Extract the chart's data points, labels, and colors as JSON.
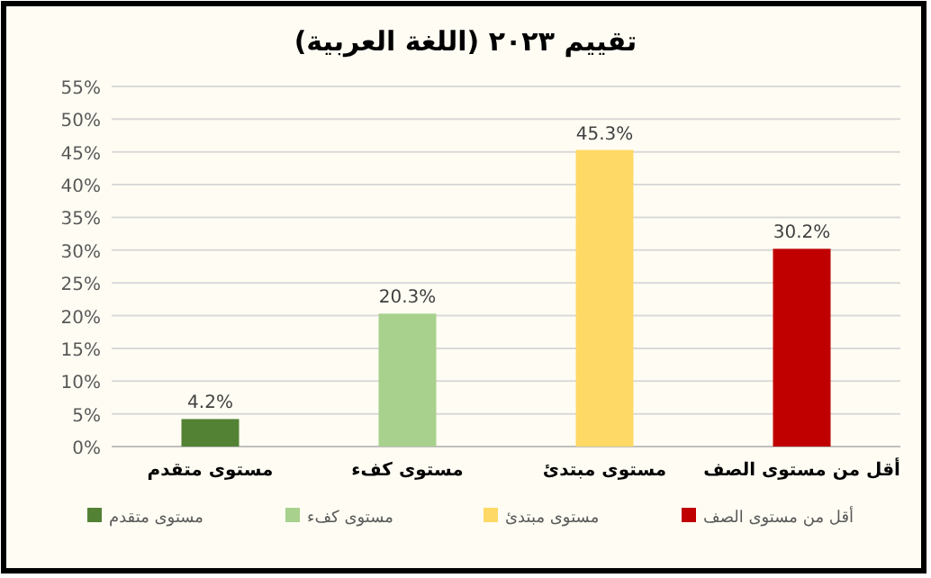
{
  "chart_data": {
    "type": "bar",
    "title": "تقييم ٢٠٢٣ (اللغة العربية)",
    "categories": [
      "مستوى متقدم",
      "مستوى كفء",
      "مستوى مبتدئ",
      "أقل من مستوى الصف"
    ],
    "series": [
      {
        "name": "مستوى متقدم",
        "color": "#548235",
        "values": [
          4.2,
          null,
          null,
          null
        ],
        "value_labels": [
          "4.2%",
          null,
          null,
          null
        ]
      },
      {
        "name": "مستوى كفء",
        "color": "#a9d18e",
        "values": [
          null,
          20.3,
          null,
          null
        ],
        "value_labels": [
          null,
          "20.3%",
          null,
          null
        ]
      },
      {
        "name": "مستوى مبتدئ",
        "color": "#ffd966",
        "values": [
          null,
          null,
          45.3,
          null
        ],
        "value_labels": [
          null,
          null,
          "45.3%",
          null
        ]
      },
      {
        "name": "أقل من مستوى الصف",
        "color": "#c00000",
        "values": [
          null,
          null,
          null,
          30.2
        ],
        "value_labels": [
          null,
          null,
          null,
          "30.2%"
        ]
      }
    ],
    "ylim": [
      0,
      55
    ],
    "yticks": [
      {
        "value": 0,
        "label": "0%"
      },
      {
        "value": 5,
        "label": "5%"
      },
      {
        "value": 10,
        "label": "10%"
      },
      {
        "value": 15,
        "label": "15%"
      },
      {
        "value": 20,
        "label": "20%"
      },
      {
        "value": 25,
        "label": "25%"
      },
      {
        "value": 30,
        "label": "30%"
      },
      {
        "value": 35,
        "label": "35%"
      },
      {
        "value": 40,
        "label": "40%"
      },
      {
        "value": 45,
        "label": "45%"
      },
      {
        "value": 50,
        "label": "50%"
      },
      {
        "value": 55,
        "label": "55%"
      }
    ],
    "grid": "y",
    "legend": "bottom"
  }
}
